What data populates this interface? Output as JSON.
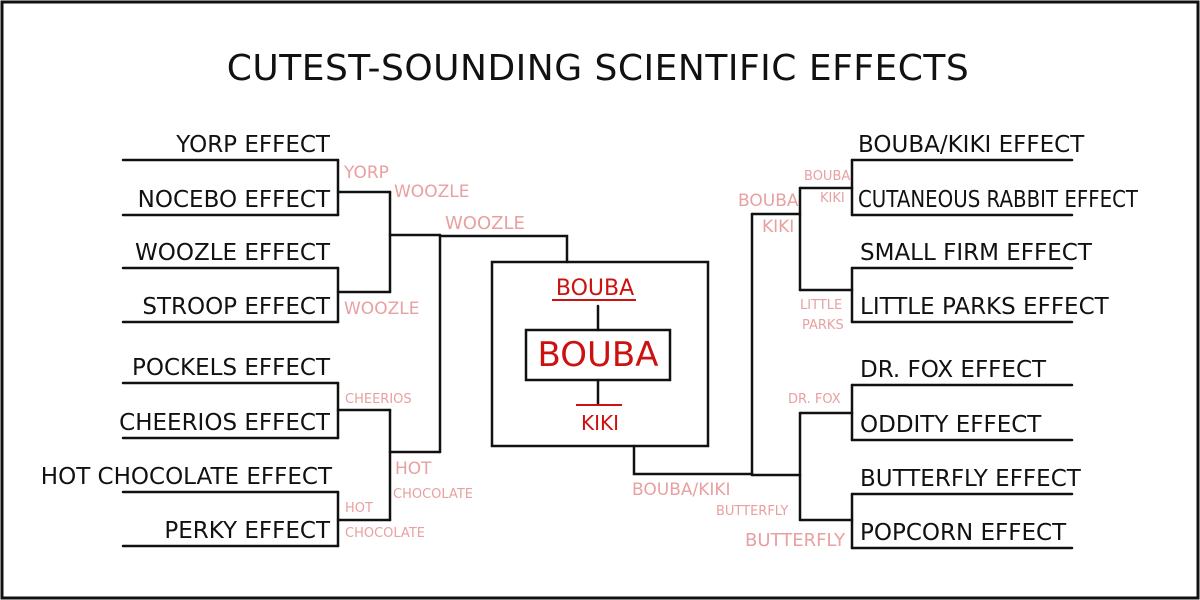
{
  "title": "CUTEST-SOUNDING SCIENTIFIC EFFECTS",
  "left": {
    "entrants": [
      "YORP EFFECT",
      "NOCEBO EFFECT",
      "WOOZLE EFFECT",
      "STROOP EFFECT",
      "POCKELS EFFECT",
      "CHEERIOS EFFECT",
      "HOT CHOCOLATE EFFECT",
      "PERKY EFFECT"
    ],
    "round1_winners": [
      "YORP",
      "WOOZLE",
      "CHEERIOS",
      "HOT",
      "CHOCOLATE"
    ],
    "round2_winners": [
      "WOOZLE",
      "HOT",
      "CHOCOLATE"
    ],
    "semifinal_winner": "WOOZLE"
  },
  "right": {
    "entrants": [
      "BOUBA/KIKI EFFECT",
      "CUTANEOUS RABBIT EFFECT",
      "SMALL FIRM EFFECT",
      "LITTLE PARKS EFFECT",
      "DR. FOX EFFECT",
      "ODDITY EFFECT",
      "BUTTERFLY EFFECT",
      "POPCORN EFFECT"
    ],
    "round1_winners": [
      "BOUBA",
      "KIKI",
      "LITTLE",
      "PARKS",
      "DR. FOX",
      "BUTTERFLY"
    ],
    "round2_winners": [
      "BOUBA",
      "KIKI",
      "BUTTERFLY"
    ],
    "semifinal_winner": "BOUBA/KIKI"
  },
  "final": {
    "top": "BOUBA",
    "champion": "BOUBA",
    "bottom": "KIKI"
  }
}
